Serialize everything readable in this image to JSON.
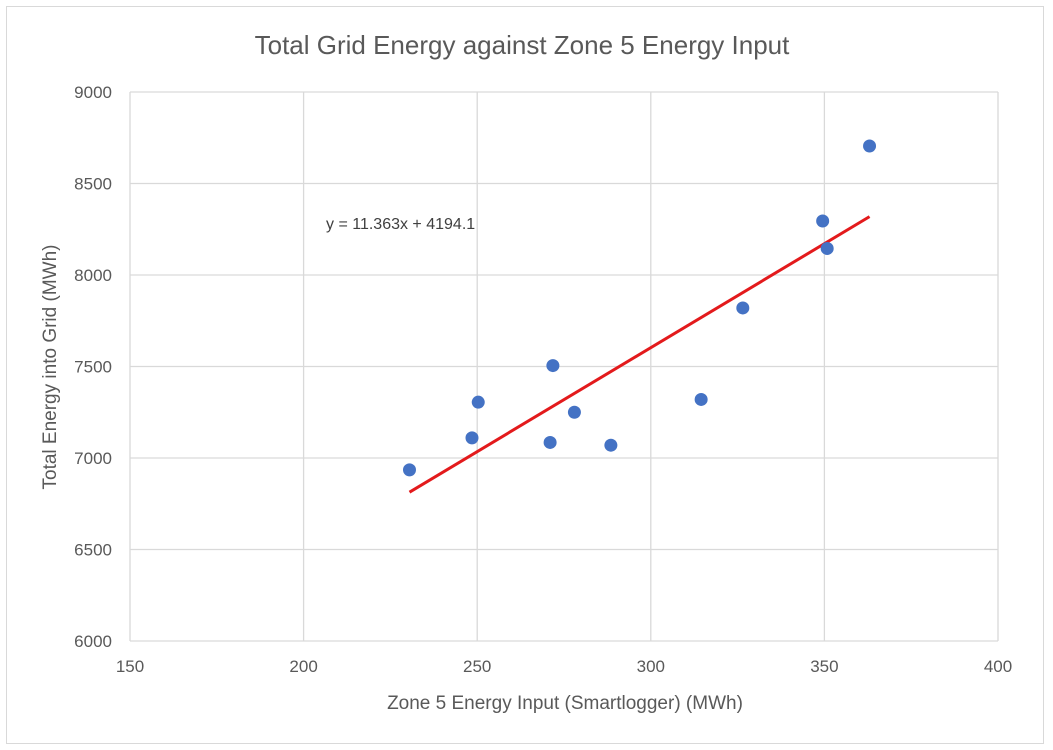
{
  "chart_data": {
    "type": "scatter",
    "title": "Total Grid Energy against Zone 5 Energy Input",
    "xlabel": "Zone 5 Energy Input (Smartlogger) (MWh)",
    "ylabel": "Total Energy into Grid (MWh)",
    "xlim": [
      150,
      400
    ],
    "ylim": [
      6000,
      9000
    ],
    "x_ticks": [
      150,
      200,
      250,
      300,
      350,
      400
    ],
    "y_ticks": [
      6000,
      6500,
      7000,
      7500,
      8000,
      8500,
      9000
    ],
    "grid": true,
    "points": [
      {
        "x": 230.5,
        "y": 6935
      },
      {
        "x": 248.5,
        "y": 7110
      },
      {
        "x": 250.3,
        "y": 7305
      },
      {
        "x": 271.0,
        "y": 7085
      },
      {
        "x": 271.8,
        "y": 7505
      },
      {
        "x": 278.0,
        "y": 7250
      },
      {
        "x": 288.5,
        "y": 7070
      },
      {
        "x": 314.5,
        "y": 7320
      },
      {
        "x": 326.5,
        "y": 7820
      },
      {
        "x": 349.5,
        "y": 8295
      },
      {
        "x": 350.8,
        "y": 8145
      },
      {
        "x": 363.0,
        "y": 8705
      }
    ],
    "trendline": {
      "equation": "y = 11.363x + 4194.1",
      "slope": 11.363,
      "intercept": 4194.1,
      "x_range": [
        230.5,
        363.0
      ]
    },
    "colors": {
      "points": "#4472c4",
      "trendline": "#e31a1c",
      "grid": "#d9d9d9",
      "text": "#595959"
    }
  }
}
